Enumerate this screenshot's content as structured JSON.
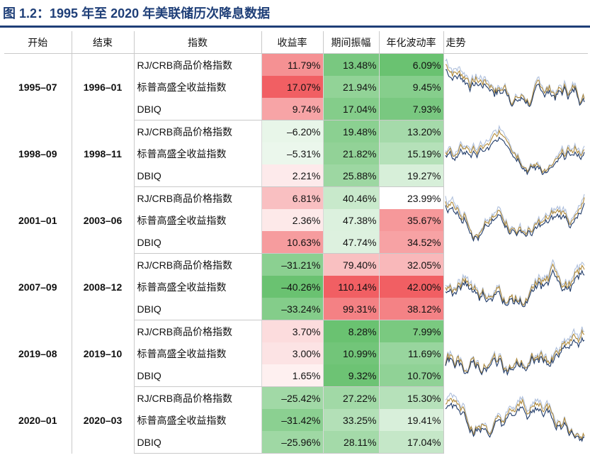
{
  "title": "图 1.2：1995 年至 2020 年美联储历次降息数据",
  "chart_data": {
    "type": "table",
    "columns": [
      "开始",
      "结束",
      "指数",
      "收益率",
      "期间振幅",
      "年化波动率",
      "走势"
    ],
    "colors": {
      "rjcrb": "#b08a3a",
      "spgs": "#1f3a68",
      "dbiq": "#aebfdc",
      "positive": "#f0575b",
      "negative": "#62bf6a"
    },
    "groups": [
      {
        "start": "1995–07",
        "end": "1996–01",
        "rows": [
          {
            "index": "RJ/CRB商品价格指数",
            "return": "11.79%",
            "amplitude": "13.48%",
            "volatility": "6.09%"
          },
          {
            "index": "标普高盛全收益指数",
            "return": "17.07%",
            "amplitude": "21.94%",
            "volatility": "9.45%"
          },
          {
            "index": "DBIQ",
            "return": "9.74%",
            "amplitude": "17.04%",
            "volatility": "7.93%"
          }
        ]
      },
      {
        "start": "1998–09",
        "end": "1998–11",
        "rows": [
          {
            "index": "RJ/CRB商品价格指数",
            "return": "–6.20%",
            "amplitude": "19.48%",
            "volatility": "13.20%"
          },
          {
            "index": "标普高盛全收益指数",
            "return": "–5.31%",
            "amplitude": "21.82%",
            "volatility": "15.19%"
          },
          {
            "index": "DBIQ",
            "return": "2.21%",
            "amplitude": "25.88%",
            "volatility": "19.27%"
          }
        ]
      },
      {
        "start": "2001–01",
        "end": "2003–06",
        "rows": [
          {
            "index": "RJ/CRB商品价格指数",
            "return": "6.81%",
            "amplitude": "40.46%",
            "volatility": "23.99%"
          },
          {
            "index": "标普高盛全收益指数",
            "return": "2.36%",
            "amplitude": "47.38%",
            "volatility": "35.67%"
          },
          {
            "index": "DBIQ",
            "return": "10.63%",
            "amplitude": "47.74%",
            "volatility": "34.52%"
          }
        ]
      },
      {
        "start": "2007–09",
        "end": "2008–12",
        "rows": [
          {
            "index": "RJ/CRB商品价格指数",
            "return": "–31.21%",
            "amplitude": "79.40%",
            "volatility": "32.05%"
          },
          {
            "index": "标普高盛全收益指数",
            "return": "–40.26%",
            "amplitude": "110.14%",
            "volatility": "42.00%"
          },
          {
            "index": "DBIQ",
            "return": "–33.24%",
            "amplitude": "99.31%",
            "volatility": "38.12%"
          }
        ]
      },
      {
        "start": "2019–08",
        "end": "2019–10",
        "rows": [
          {
            "index": "RJ/CRB商品价格指数",
            "return": "3.70%",
            "amplitude": "8.28%",
            "volatility": "7.99%"
          },
          {
            "index": "标普高盛全收益指数",
            "return": "3.00%",
            "amplitude": "10.99%",
            "volatility": "11.69%"
          },
          {
            "index": "DBIQ",
            "return": "1.65%",
            "amplitude": "9.32%",
            "volatility": "10.70%"
          }
        ]
      },
      {
        "start": "2020–01",
        "end": "2020–03",
        "rows": [
          {
            "index": "RJ/CRB商品价格指数",
            "return": "–25.42%",
            "amplitude": "27.22%",
            "volatility": "15.30%"
          },
          {
            "index": "标普高盛全收益指数",
            "return": "–31.42%",
            "amplitude": "33.25%",
            "volatility": "19.41%"
          },
          {
            "index": "DBIQ",
            "return": "–25.96%",
            "amplitude": "28.11%",
            "volatility": "17.04%"
          }
        ]
      }
    ]
  }
}
